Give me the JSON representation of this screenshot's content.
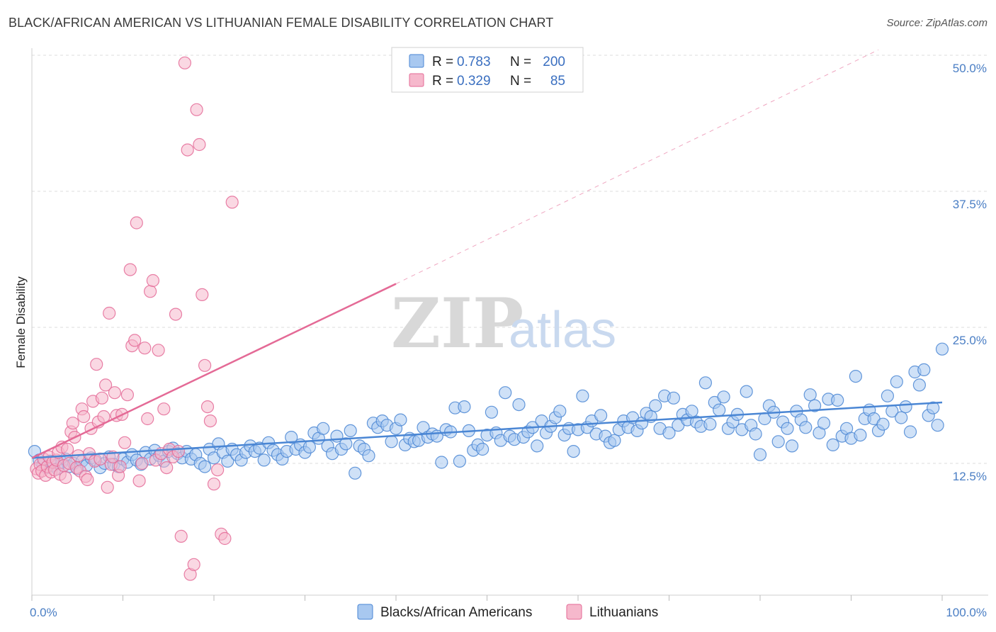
{
  "header": {
    "title": "BLACK/AFRICAN AMERICAN VS LITHUANIAN FEMALE DISABILITY CORRELATION CHART",
    "source": "Source: ZipAtlas.com"
  },
  "watermark": {
    "zip": "ZIP",
    "atlas": "atlas"
  },
  "legend": {
    "rows": [
      {
        "r_label": "R =",
        "r_value": "0.783",
        "n_label": "N =",
        "n_value": "200",
        "color": "#a8c8f0"
      },
      {
        "r_label": "R =",
        "r_value": "0.329",
        "n_label": "N =",
        "n_value": "85",
        "color": "#f6b8cc"
      }
    ]
  },
  "bottom_legend": [
    {
      "label": "Blacks/African Americans",
      "color": "#a8c8f0"
    },
    {
      "label": "Lithuanians",
      "color": "#f6b8cc"
    }
  ],
  "chart_data": {
    "type": "scatter",
    "title": "BLACK/AFRICAN AMERICAN VS LITHUANIAN FEMALE DISABILITY CORRELATION CHART",
    "xlabel": "",
    "ylabel": "Female Disability",
    "xlim": [
      0,
      100
    ],
    "ylim": [
      0,
      52
    ],
    "x_tick_labels": [
      "0.0%",
      "100.0%"
    ],
    "y_ticks": [
      12.5,
      25.0,
      37.5,
      50.0
    ],
    "y_tick_labels": [
      "12.5%",
      "25.0%",
      "37.5%",
      "50.0%"
    ],
    "grid": true,
    "legend_position": "top-center",
    "series": [
      {
        "name": "Blacks/African Americans",
        "color": "#4a86d4",
        "fill": "#a8c8f0",
        "trend": {
          "x": [
            0,
            100
          ],
          "y": [
            13.0,
            18.1
          ],
          "style": "solid"
        },
        "points": [
          [
            0.3,
            13.6
          ],
          [
            0.8,
            12.8
          ],
          [
            1.2,
            12.4
          ],
          [
            1.6,
            12.1
          ],
          [
            2.0,
            12.7
          ],
          [
            2.4,
            12.3
          ],
          [
            2.8,
            12.0
          ],
          [
            3.3,
            12.6
          ],
          [
            3.7,
            12.9
          ],
          [
            4.1,
            12.2
          ],
          [
            4.6,
            12.5
          ],
          [
            5.0,
            12.0
          ],
          [
            5.5,
            12.7
          ],
          [
            6.0,
            12.3
          ],
          [
            6.5,
            13.0
          ],
          [
            7.0,
            12.8
          ],
          [
            7.5,
            12.1
          ],
          [
            8.0,
            12.5
          ],
          [
            8.5,
            13.1
          ],
          [
            9.0,
            12.4
          ],
          [
            9.5,
            12.2
          ],
          [
            10.0,
            12.9
          ],
          [
            10.5,
            12.6
          ],
          [
            11.0,
            13.3
          ],
          [
            11.5,
            12.8
          ],
          [
            12.0,
            12.4
          ],
          [
            12.5,
            13.5
          ],
          [
            13.0,
            12.9
          ],
          [
            13.5,
            13.7
          ],
          [
            14.0,
            13.2
          ],
          [
            14.5,
            12.7
          ],
          [
            15.0,
            13.6
          ],
          [
            15.5,
            13.9
          ],
          [
            16.0,
            13.4
          ],
          [
            16.5,
            13.0
          ],
          [
            17.0,
            13.6
          ],
          [
            17.5,
            12.9
          ],
          [
            18.0,
            13.3
          ],
          [
            18.5,
            12.5
          ],
          [
            19.0,
            12.2
          ],
          [
            19.5,
            13.8
          ],
          [
            20.0,
            13.0
          ],
          [
            20.5,
            14.3
          ],
          [
            21.0,
            13.5
          ],
          [
            21.5,
            12.7
          ],
          [
            22.0,
            13.8
          ],
          [
            22.5,
            13.3
          ],
          [
            23.0,
            12.8
          ],
          [
            23.5,
            13.5
          ],
          [
            24.0,
            14.1
          ],
          [
            24.5,
            13.6
          ],
          [
            25.0,
            13.9
          ],
          [
            25.5,
            12.8
          ],
          [
            26.0,
            14.4
          ],
          [
            26.5,
            13.7
          ],
          [
            27.0,
            13.3
          ],
          [
            27.5,
            12.9
          ],
          [
            28.0,
            13.6
          ],
          [
            28.5,
            14.9
          ],
          [
            29.0,
            13.8
          ],
          [
            29.5,
            14.2
          ],
          [
            30.0,
            13.5
          ],
          [
            30.5,
            14.0
          ],
          [
            31.0,
            15.3
          ],
          [
            31.5,
            14.8
          ],
          [
            32.0,
            15.7
          ],
          [
            32.5,
            14.1
          ],
          [
            33.0,
            13.4
          ],
          [
            33.5,
            15.0
          ],
          [
            34.0,
            13.8
          ],
          [
            34.5,
            14.3
          ],
          [
            35.0,
            15.5
          ],
          [
            35.5,
            11.6
          ],
          [
            36.0,
            14.1
          ],
          [
            36.5,
            13.8
          ],
          [
            37.0,
            13.2
          ],
          [
            37.5,
            16.2
          ],
          [
            38.0,
            15.8
          ],
          [
            38.5,
            16.4
          ],
          [
            39.0,
            16.0
          ],
          [
            39.5,
            14.5
          ],
          [
            40.0,
            15.7
          ],
          [
            40.5,
            16.5
          ],
          [
            41.0,
            14.2
          ],
          [
            41.5,
            14.8
          ],
          [
            42.0,
            14.5
          ],
          [
            42.5,
            14.6
          ],
          [
            43.0,
            15.8
          ],
          [
            43.5,
            14.9
          ],
          [
            44.0,
            15.2
          ],
          [
            44.5,
            15.0
          ],
          [
            45.0,
            12.6
          ],
          [
            45.5,
            15.6
          ],
          [
            46.0,
            15.4
          ],
          [
            46.5,
            17.6
          ],
          [
            47.0,
            12.7
          ],
          [
            47.5,
            17.7
          ],
          [
            48.0,
            15.5
          ],
          [
            48.5,
            13.7
          ],
          [
            49.0,
            14.2
          ],
          [
            49.5,
            13.8
          ],
          [
            50.0,
            15.1
          ],
          [
            50.5,
            17.2
          ],
          [
            51.0,
            15.3
          ],
          [
            51.5,
            14.6
          ],
          [
            52.0,
            19.0
          ],
          [
            52.5,
            15.0
          ],
          [
            53.0,
            14.7
          ],
          [
            53.5,
            17.9
          ],
          [
            54.0,
            14.9
          ],
          [
            54.5,
            15.4
          ],
          [
            55.0,
            15.8
          ],
          [
            55.5,
            14.1
          ],
          [
            56.0,
            16.4
          ],
          [
            56.5,
            15.3
          ],
          [
            57.0,
            15.9
          ],
          [
            57.5,
            16.7
          ],
          [
            58.0,
            17.3
          ],
          [
            58.5,
            15.1
          ],
          [
            59.0,
            15.7
          ],
          [
            59.5,
            13.6
          ],
          [
            60.0,
            15.6
          ],
          [
            60.5,
            18.7
          ],
          [
            61.0,
            15.8
          ],
          [
            61.5,
            16.4
          ],
          [
            62.0,
            15.2
          ],
          [
            62.5,
            16.9
          ],
          [
            63.0,
            15.0
          ],
          [
            63.5,
            14.4
          ],
          [
            64.0,
            14.6
          ],
          [
            64.5,
            15.6
          ],
          [
            65.0,
            16.4
          ],
          [
            65.5,
            15.8
          ],
          [
            66.0,
            16.7
          ],
          [
            66.5,
            15.5
          ],
          [
            67.0,
            16.2
          ],
          [
            67.5,
            17.1
          ],
          [
            68.0,
            16.8
          ],
          [
            68.5,
            17.8
          ],
          [
            69.0,
            15.7
          ],
          [
            69.5,
            18.7
          ],
          [
            70.0,
            15.3
          ],
          [
            70.5,
            18.5
          ],
          [
            71.0,
            16.0
          ],
          [
            71.5,
            17.0
          ],
          [
            72.0,
            16.5
          ],
          [
            72.5,
            17.3
          ],
          [
            73.0,
            16.3
          ],
          [
            73.5,
            15.9
          ],
          [
            74.0,
            19.9
          ],
          [
            74.5,
            16.1
          ],
          [
            75.0,
            18.1
          ],
          [
            75.5,
            17.4
          ],
          [
            76.0,
            18.6
          ],
          [
            76.5,
            15.7
          ],
          [
            77.0,
            16.3
          ],
          [
            77.5,
            17.0
          ],
          [
            78.0,
            15.6
          ],
          [
            78.5,
            19.1
          ],
          [
            79.0,
            16.0
          ],
          [
            79.5,
            15.2
          ],
          [
            80.0,
            13.3
          ],
          [
            80.5,
            16.6
          ],
          [
            81.0,
            17.8
          ],
          [
            81.5,
            17.2
          ],
          [
            82.0,
            14.5
          ],
          [
            82.5,
            16.3
          ],
          [
            83.0,
            15.7
          ],
          [
            83.5,
            14.1
          ],
          [
            84.0,
            17.3
          ],
          [
            84.5,
            16.5
          ],
          [
            85.0,
            15.8
          ],
          [
            85.5,
            18.8
          ],
          [
            86.0,
            17.8
          ],
          [
            86.5,
            15.3
          ],
          [
            87.0,
            16.2
          ],
          [
            87.5,
            18.4
          ],
          [
            88.0,
            14.2
          ],
          [
            88.5,
            18.3
          ],
          [
            89.0,
            15.0
          ],
          [
            89.5,
            15.7
          ],
          [
            90.0,
            14.8
          ],
          [
            90.5,
            20.5
          ],
          [
            91.0,
            15.1
          ],
          [
            91.5,
            16.6
          ],
          [
            92.0,
            17.4
          ],
          [
            92.5,
            16.6
          ],
          [
            93.0,
            15.5
          ],
          [
            93.5,
            16.1
          ],
          [
            94.0,
            18.7
          ],
          [
            94.5,
            17.3
          ],
          [
            95.0,
            20.0
          ],
          [
            95.5,
            16.7
          ],
          [
            96.0,
            17.7
          ],
          [
            96.5,
            15.4
          ],
          [
            97.0,
            20.9
          ],
          [
            97.5,
            19.7
          ],
          [
            98.0,
            21.1
          ],
          [
            98.5,
            16.9
          ],
          [
            99.0,
            17.6
          ],
          [
            99.5,
            16.0
          ],
          [
            100.0,
            23.0
          ]
        ]
      },
      {
        "name": "Lithuanians",
        "color": "#e46a96",
        "fill": "#f6b8cc",
        "trend": {
          "x": [
            0,
            40
          ],
          "y": [
            13.0,
            29.0
          ],
          "style": "solid",
          "extension": {
            "x": [
              40,
              93
            ],
            "y": [
              29.0,
              50.5
            ],
            "style": "dashed"
          }
        },
        "points": [
          [
            0.5,
            12.0
          ],
          [
            0.7,
            11.6
          ],
          [
            0.9,
            12.4
          ],
          [
            1.1,
            11.8
          ],
          [
            1.3,
            12.9
          ],
          [
            1.5,
            11.4
          ],
          [
            1.7,
            12.2
          ],
          [
            1.9,
            13.1
          ],
          [
            2.1,
            11.7
          ],
          [
            2.3,
            12.6
          ],
          [
            2.5,
            11.9
          ],
          [
            2.7,
            12.8
          ],
          [
            2.9,
            13.5
          ],
          [
            3.1,
            11.5
          ],
          [
            3.3,
            14.0
          ],
          [
            3.5,
            12.3
          ],
          [
            3.7,
            11.2
          ],
          [
            3.9,
            13.8
          ],
          [
            4.1,
            12.5
          ],
          [
            4.3,
            15.4
          ],
          [
            4.5,
            16.2
          ],
          [
            4.7,
            14.9
          ],
          [
            4.9,
            12.1
          ],
          [
            5.1,
            13.2
          ],
          [
            5.3,
            11.8
          ],
          [
            5.5,
            17.5
          ],
          [
            5.7,
            16.8
          ],
          [
            5.9,
            11.3
          ],
          [
            6.1,
            11.0
          ],
          [
            6.3,
            13.4
          ],
          [
            6.5,
            15.7
          ],
          [
            6.7,
            18.2
          ],
          [
            6.9,
            12.7
          ],
          [
            7.1,
            21.6
          ],
          [
            7.3,
            16.3
          ],
          [
            7.5,
            12.9
          ],
          [
            7.7,
            18.5
          ],
          [
            7.9,
            16.8
          ],
          [
            8.1,
            19.7
          ],
          [
            8.3,
            10.3
          ],
          [
            8.5,
            26.3
          ],
          [
            8.7,
            12.4
          ],
          [
            8.9,
            13.1
          ],
          [
            9.1,
            19.0
          ],
          [
            9.3,
            16.9
          ],
          [
            9.5,
            11.4
          ],
          [
            9.7,
            12.2
          ],
          [
            9.9,
            17.0
          ],
          [
            10.2,
            14.4
          ],
          [
            10.5,
            18.8
          ],
          [
            10.8,
            30.3
          ],
          [
            11.0,
            23.3
          ],
          [
            11.3,
            23.8
          ],
          [
            11.5,
            34.6
          ],
          [
            11.8,
            10.9
          ],
          [
            12.1,
            12.5
          ],
          [
            12.4,
            23.1
          ],
          [
            12.7,
            16.6
          ],
          [
            13.0,
            28.3
          ],
          [
            13.3,
            29.3
          ],
          [
            13.6,
            12.8
          ],
          [
            13.9,
            22.9
          ],
          [
            14.2,
            13.4
          ],
          [
            14.5,
            17.5
          ],
          [
            14.8,
            12.1
          ],
          [
            15.1,
            13.8
          ],
          [
            15.5,
            13.1
          ],
          [
            15.8,
            26.2
          ],
          [
            16.1,
            13.6
          ],
          [
            16.4,
            5.8
          ],
          [
            16.8,
            49.3
          ],
          [
            17.1,
            41.3
          ],
          [
            17.4,
            2.3
          ],
          [
            17.8,
            3.2
          ],
          [
            18.1,
            45.0
          ],
          [
            18.4,
            41.8
          ],
          [
            18.7,
            28.0
          ],
          [
            19.0,
            21.5
          ],
          [
            19.3,
            17.7
          ],
          [
            19.6,
            16.4
          ],
          [
            20.0,
            10.6
          ],
          [
            20.4,
            11.9
          ],
          [
            20.8,
            6.0
          ],
          [
            21.2,
            5.6
          ],
          [
            22.0,
            36.5
          ]
        ]
      }
    ]
  }
}
